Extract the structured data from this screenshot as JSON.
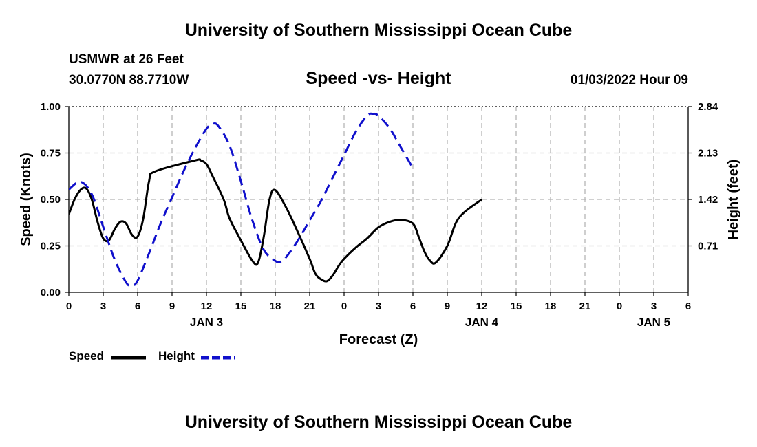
{
  "header": {
    "title": "University of Southern Mississippi Ocean Cube",
    "station_name": "USMWR at 26 Feet",
    "station_coords": "30.0770N  88.7710W",
    "date_label": "01/03/2022 Hour 09",
    "footer_title": "University of Southern Mississippi Ocean Cube"
  },
  "chart_data": {
    "type": "line",
    "title": "Speed -vs- Height",
    "xlabel": "Forecast (Z)",
    "ylabel_left": "Speed (Knots)",
    "ylabel_right": "Height (feet)",
    "x_tick_labels": [
      "0",
      "3",
      "6",
      "9",
      "12",
      "15",
      "18",
      "21",
      "0",
      "3",
      "6",
      "9",
      "12",
      "15",
      "18",
      "21",
      "0",
      "3",
      "6"
    ],
    "day_labels": [
      {
        "label": "JAN 3",
        "hours": 24
      },
      {
        "label": "JAN 4",
        "hours": 72
      },
      {
        "label": "JAN 5",
        "hours": 102
      }
    ],
    "xlim_hours": [
      0,
      108
    ],
    "ylim_left": [
      0,
      1
    ],
    "yticks_left": [
      "0.00",
      "0.25",
      "0.50",
      "0.75",
      "1.00"
    ],
    "ylim_right": [
      0,
      2.84
    ],
    "yticks_right": [
      "0.71",
      "1.42",
      "2.13",
      "2.84"
    ],
    "grid": true,
    "legend_position": "bottom-left",
    "series": [
      {
        "name": "Speed",
        "axis": "left",
        "color": "#000000",
        "style": "solid",
        "points": [
          [
            0,
            0.42
          ],
          [
            1,
            0.5
          ],
          [
            2,
            0.55
          ],
          [
            3,
            0.56
          ],
          [
            4,
            0.5
          ],
          [
            5,
            0.38
          ],
          [
            6,
            0.29
          ],
          [
            7,
            0.28
          ],
          [
            8,
            0.34
          ],
          [
            9,
            0.38
          ],
          [
            10,
            0.37
          ],
          [
            11,
            0.31
          ],
          [
            12,
            0.3
          ],
          [
            13,
            0.4
          ],
          [
            14,
            0.6
          ],
          [
            15,
            0.65
          ],
          [
            22,
            0.71
          ],
          [
            23,
            0.71
          ],
          [
            24,
            0.69
          ],
          [
            25,
            0.63
          ],
          [
            27,
            0.5
          ],
          [
            28,
            0.4
          ],
          [
            30,
            0.28
          ],
          [
            32,
            0.17
          ],
          [
            33,
            0.16
          ],
          [
            34,
            0.3
          ],
          [
            35,
            0.5
          ],
          [
            36,
            0.55
          ],
          [
            38,
            0.45
          ],
          [
            40,
            0.32
          ],
          [
            42,
            0.18
          ],
          [
            43,
            0.1
          ],
          [
            44,
            0.07
          ],
          [
            45,
            0.06
          ],
          [
            46,
            0.09
          ],
          [
            47,
            0.14
          ],
          [
            48,
            0.18
          ],
          [
            50,
            0.24
          ],
          [
            52,
            0.29
          ],
          [
            54,
            0.35
          ],
          [
            56,
            0.38
          ],
          [
            58,
            0.39
          ],
          [
            60,
            0.37
          ],
          [
            61,
            0.3
          ],
          [
            62,
            0.22
          ],
          [
            63,
            0.17
          ],
          [
            64,
            0.16
          ],
          [
            66,
            0.25
          ],
          [
            68,
            0.4
          ],
          [
            72,
            0.5
          ]
        ]
      },
      {
        "name": "Height",
        "axis": "right",
        "color": "#1010cc",
        "style": "dashed",
        "points": [
          [
            0,
            1.57
          ],
          [
            2,
            1.69
          ],
          [
            4,
            1.5
          ],
          [
            6,
            1.0
          ],
          [
            8,
            0.5
          ],
          [
            10,
            0.15
          ],
          [
            11,
            0.1
          ],
          [
            12,
            0.18
          ],
          [
            14,
            0.6
          ],
          [
            16,
            1.05
          ],
          [
            18,
            1.45
          ],
          [
            20,
            1.85
          ],
          [
            22,
            2.2
          ],
          [
            24,
            2.5
          ],
          [
            25,
            2.57
          ],
          [
            26,
            2.55
          ],
          [
            28,
            2.25
          ],
          [
            30,
            1.7
          ],
          [
            32,
            1.1
          ],
          [
            34,
            0.65
          ],
          [
            36,
            0.48
          ],
          [
            37,
            0.47
          ],
          [
            38,
            0.55
          ],
          [
            40,
            0.8
          ],
          [
            42,
            1.1
          ],
          [
            44,
            1.4
          ],
          [
            46,
            1.75
          ],
          [
            48,
            2.1
          ],
          [
            50,
            2.45
          ],
          [
            52,
            2.7
          ],
          [
            53,
            2.73
          ],
          [
            54,
            2.7
          ],
          [
            56,
            2.5
          ],
          [
            58,
            2.2
          ],
          [
            60,
            1.9
          ]
        ]
      }
    ]
  },
  "legend": {
    "speed_label": "Speed",
    "height_label": "Height"
  }
}
